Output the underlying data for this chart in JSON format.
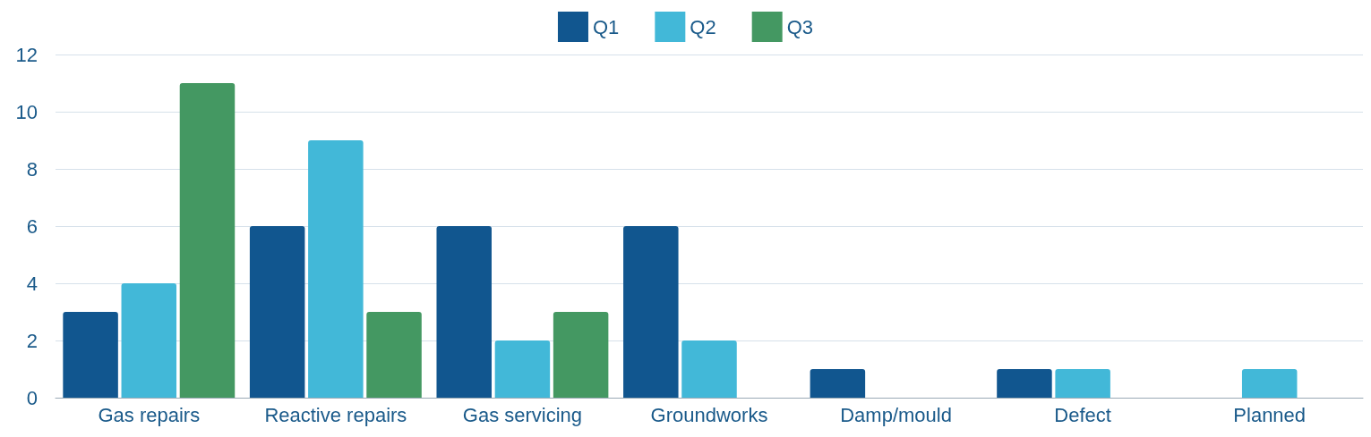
{
  "chart_data": {
    "type": "bar",
    "categories": [
      "Gas repairs",
      "Reactive repairs",
      "Gas servicing",
      "Groundworks",
      "Damp/mould",
      "Defect",
      "Planned"
    ],
    "series": [
      {
        "name": "Q1",
        "color": "#11568f",
        "values": [
          3,
          6,
          6,
          6,
          1,
          1,
          0
        ]
      },
      {
        "name": "Q2",
        "color": "#42b8d8",
        "values": [
          4,
          9,
          2,
          2,
          0,
          1,
          1
        ]
      },
      {
        "name": "Q3",
        "color": "#449862",
        "values": [
          11,
          3,
          3,
          0,
          0,
          0,
          0
        ]
      }
    ],
    "ylim": [
      0,
      12
    ],
    "yticks": [
      0,
      2,
      4,
      6,
      8,
      10,
      12
    ],
    "grid": "y",
    "legend": "top"
  }
}
